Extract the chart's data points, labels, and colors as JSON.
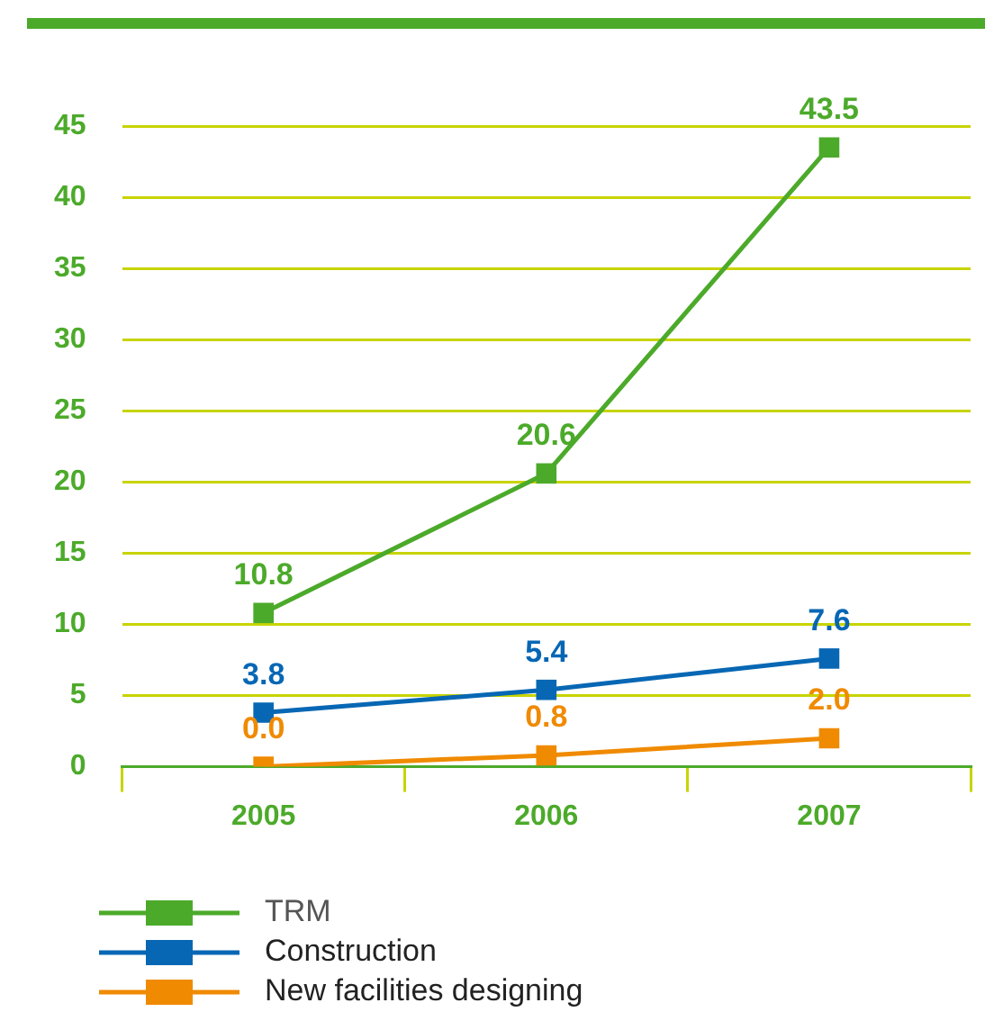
{
  "chart_data": {
    "type": "line",
    "categories": [
      "2005",
      "2006",
      "2007"
    ],
    "series": [
      {
        "name": "TRM",
        "color": "#4caa2a",
        "values": [
          10.8,
          20.6,
          43.5
        ],
        "value_labels": [
          "10.8",
          "20.6",
          "43.5"
        ]
      },
      {
        "name": "Construction",
        "color": "#0767b4",
        "values": [
          3.8,
          5.4,
          7.6
        ],
        "value_labels": [
          "3.8",
          "5.4",
          "7.6"
        ]
      },
      {
        "name": "New facilities designing",
        "color": "#f08a00",
        "values": [
          0,
          0.8,
          2
        ],
        "value_labels": [
          "0.0",
          "0.8",
          "2.0"
        ]
      }
    ],
    "ylim": [
      0,
      45
    ],
    "yticks": [
      0,
      5,
      10,
      15,
      20,
      25,
      30,
      35,
      40,
      45
    ],
    "grid": "y",
    "legend": "bottom left",
    "marker": "square",
    "line_style": "solid"
  }
}
